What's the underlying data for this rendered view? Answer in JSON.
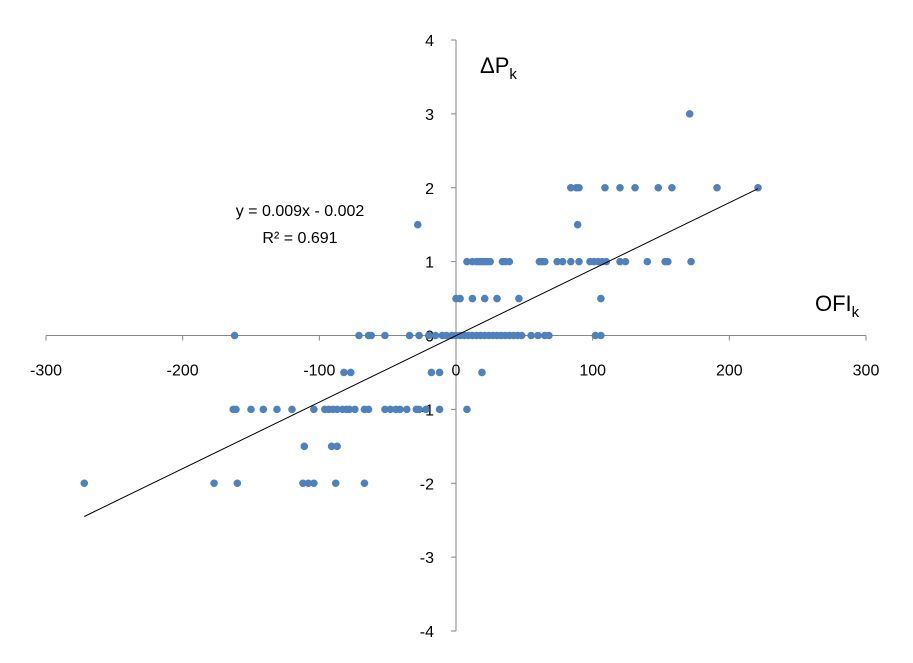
{
  "chart_data": {
    "type": "scatter",
    "xlabel": "OFI",
    "xlabel_subscript": "k",
    "ylabel": "ΔP",
    "ylabel_subscript": "k",
    "xlim": [
      -300,
      300
    ],
    "ylim": [
      -4,
      4
    ],
    "x_ticks": [
      "-300",
      "-200",
      "-100",
      "0",
      "100",
      "200",
      "300"
    ],
    "y_ticks": [
      "-4",
      "-3",
      "-2",
      "-1",
      "0",
      "1",
      "2",
      "3",
      "4"
    ],
    "grid": false,
    "marker_color": "#4F81BD",
    "trendline": {
      "slope": 0.009,
      "intercept": -0.002,
      "x_range": [
        -272,
        221
      ],
      "equation": "y = 0.009x - 0.002",
      "r_squared": "R² = 0.691",
      "color": "#000000"
    },
    "points": [
      [
        -272,
        -2
      ],
      [
        -177,
        -2
      ],
      [
        -160,
        -2
      ],
      [
        -112,
        -2
      ],
      [
        -108,
        -2
      ],
      [
        -104,
        -2
      ],
      [
        -88,
        -2
      ],
      [
        -67,
        -2
      ],
      [
        -111,
        -1.5
      ],
      [
        -91,
        -1.5
      ],
      [
        -87,
        -1.5
      ],
      [
        -163,
        -1
      ],
      [
        -161,
        -1
      ],
      [
        -150,
        -1
      ],
      [
        -141,
        -1
      ],
      [
        -131,
        -1
      ],
      [
        -120,
        -1
      ],
      [
        -104,
        -1
      ],
      [
        -96,
        -1
      ],
      [
        -93,
        -1
      ],
      [
        -90,
        -1
      ],
      [
        -87,
        -1
      ],
      [
        -83,
        -1
      ],
      [
        -80,
        -1
      ],
      [
        -78,
        -1
      ],
      [
        -74,
        -1
      ],
      [
        -67,
        -1
      ],
      [
        -64,
        -1
      ],
      [
        -52,
        -1
      ],
      [
        -48,
        -1
      ],
      [
        -44,
        -1
      ],
      [
        -41,
        -1
      ],
      [
        -36,
        -1
      ],
      [
        -29,
        -1
      ],
      [
        -27,
        -1
      ],
      [
        -22,
        -1
      ],
      [
        -12,
        -1
      ],
      [
        8,
        -1
      ],
      [
        -82,
        -0.5
      ],
      [
        -77,
        -0.5
      ],
      [
        -18,
        -0.5
      ],
      [
        -12,
        -0.5
      ],
      [
        19,
        -0.5
      ],
      [
        -162,
        0
      ],
      [
        -71,
        0
      ],
      [
        -64,
        0
      ],
      [
        -62,
        0
      ],
      [
        -52,
        0
      ],
      [
        -34,
        0
      ],
      [
        -27,
        0
      ],
      [
        -20,
        0
      ],
      [
        -15,
        0
      ],
      [
        -10,
        0
      ],
      [
        -7,
        0
      ],
      [
        -3,
        0
      ],
      [
        0,
        0
      ],
      [
        3,
        0
      ],
      [
        6,
        0
      ],
      [
        9,
        0
      ],
      [
        12,
        0
      ],
      [
        15,
        0
      ],
      [
        18,
        0
      ],
      [
        21,
        0
      ],
      [
        24,
        0
      ],
      [
        27,
        0
      ],
      [
        30,
        0
      ],
      [
        33,
        0
      ],
      [
        36,
        0
      ],
      [
        39,
        0
      ],
      [
        42,
        0
      ],
      [
        45,
        0
      ],
      [
        48,
        0
      ],
      [
        55,
        0
      ],
      [
        60,
        0
      ],
      [
        65,
        0
      ],
      [
        68,
        0
      ],
      [
        102,
        0
      ],
      [
        106,
        0
      ],
      [
        0,
        0.5
      ],
      [
        3,
        0.5
      ],
      [
        12,
        0.5
      ],
      [
        21,
        0.5
      ],
      [
        30,
        0.5
      ],
      [
        46,
        0.5
      ],
      [
        106,
        0.5
      ],
      [
        8,
        1
      ],
      [
        12,
        1
      ],
      [
        15,
        1
      ],
      [
        17,
        1
      ],
      [
        19,
        1
      ],
      [
        21,
        1
      ],
      [
        23,
        1
      ],
      [
        25,
        1
      ],
      [
        34,
        1
      ],
      [
        36,
        1
      ],
      [
        39,
        1
      ],
      [
        61,
        1
      ],
      [
        63,
        1
      ],
      [
        65,
        1
      ],
      [
        74,
        1
      ],
      [
        78,
        1
      ],
      [
        84,
        1
      ],
      [
        90,
        1
      ],
      [
        98,
        1
      ],
      [
        101,
        1
      ],
      [
        104,
        1
      ],
      [
        107,
        1
      ],
      [
        110,
        1
      ],
      [
        120,
        1
      ],
      [
        124,
        1
      ],
      [
        140,
        1
      ],
      [
        153,
        1
      ],
      [
        155,
        1
      ],
      [
        172,
        1
      ],
      [
        -28,
        1.5
      ],
      [
        89,
        1.5
      ],
      [
        84,
        2
      ],
      [
        88,
        2
      ],
      [
        90,
        2
      ],
      [
        109,
        2
      ],
      [
        120,
        2
      ],
      [
        131,
        2
      ],
      [
        148,
        2
      ],
      [
        158,
        2
      ],
      [
        191,
        2
      ],
      [
        221,
        2
      ],
      [
        171,
        3
      ]
    ]
  }
}
